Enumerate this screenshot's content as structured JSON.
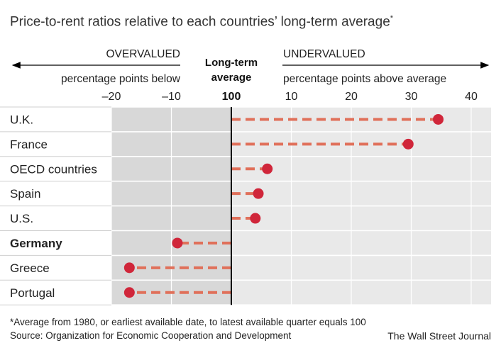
{
  "title": "Price-to-rent ratios relative to each countries’ long-term average",
  "title_marker": "*",
  "header": {
    "left_label": "OVERVALUED",
    "left_sub": "percentage points below",
    "center_line1": "Long-term",
    "center_line2": "average",
    "right_label": "UNDERVALUED",
    "right_sub": "percentage points above average"
  },
  "footnote": "*Average from 1980, or earliest available date, to latest available quarter equals 100",
  "source": "Source: Organization for Economic Cooperation and Development",
  "credit": "The Wall Street Journal",
  "colors": {
    "panel_dark": "#d8d8d8",
    "panel_light": "#e9e9e9",
    "dot": "#d0263a",
    "dash": "#e0705a",
    "baseline": "#000000"
  },
  "chart_data": {
    "type": "dot",
    "baseline": 100,
    "x_range": [
      -26,
      42
    ],
    "ticks": [
      {
        "value": -20,
        "label": "–20"
      },
      {
        "value": -10,
        "label": "–10"
      },
      {
        "value": 0,
        "label": "100"
      },
      {
        "value": 10,
        "label": "10"
      },
      {
        "value": 20,
        "label": "20"
      },
      {
        "value": 30,
        "label": "30"
      },
      {
        "value": 40,
        "label": "40"
      }
    ],
    "categories": [
      "U.K.",
      "France",
      "OECD countries",
      "Spain",
      "U.S.",
      "Germany",
      "Greece",
      "Portugal"
    ],
    "values": [
      34.5,
      29.5,
      6,
      4.5,
      4,
      -9,
      -17,
      -17
    ],
    "highlight": "Germany"
  }
}
